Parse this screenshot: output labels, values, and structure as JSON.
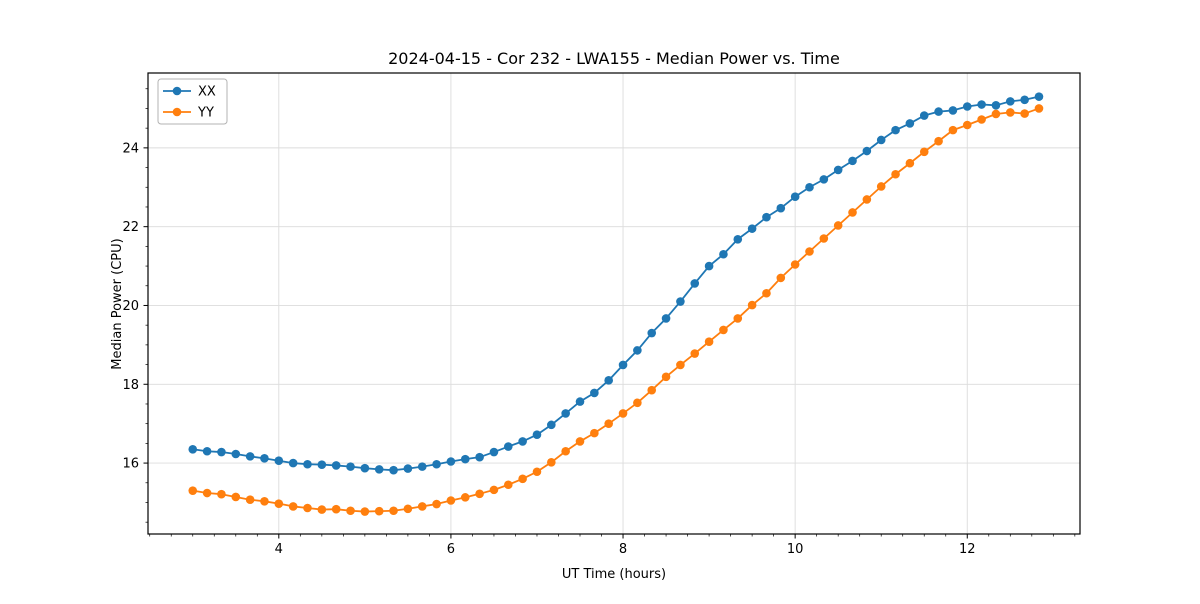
{
  "chart_data": {
    "type": "line",
    "title": "2024-04-15 - Cor 232 - LWA155 - Median Power vs. Time",
    "xlabel": "UT Time (hours)",
    "ylabel": "Median Power (CPU)",
    "xlim": [
      2.48,
      13.31
    ],
    "ylim": [
      14.2,
      25.9
    ],
    "x_ticks": [
      4,
      6,
      8,
      10,
      12
    ],
    "y_ticks": [
      16,
      18,
      20,
      22,
      24
    ],
    "x_minor_step": 0.25,
    "y_minor_step": 0.5,
    "grid": true,
    "grid_color": "#dcdcdc",
    "frame_color": "#000000",
    "legend_position": "upper left",
    "marker": "circle",
    "marker_radius": 4.3,
    "line_width": 1.8,
    "x": [
      3,
      3.1667,
      3.3333,
      3.5,
      3.6667,
      3.8333,
      4,
      4.1667,
      4.3333,
      4.5,
      4.6667,
      4.8333,
      5,
      5.1667,
      5.3333,
      5.5,
      5.6667,
      5.8333,
      6,
      6.1667,
      6.3333,
      6.5,
      6.6667,
      6.8333,
      7,
      7.1667,
      7.3333,
      7.5,
      7.6667,
      7.8333,
      8,
      8.1667,
      8.3333,
      8.5,
      8.6667,
      8.8333,
      9,
      9.1667,
      9.3333,
      9.5,
      9.6667,
      9.8333,
      10,
      10.1667,
      10.3333,
      10.5,
      10.6667,
      10.8333,
      11,
      11.1667,
      11.3333,
      11.5,
      11.6667,
      11.8333,
      12,
      12.1667,
      12.3333,
      12.5,
      12.6667,
      12.8333
    ],
    "series": [
      {
        "name": "XX",
        "color": "#1f77b4",
        "values": [
          16.35,
          16.3,
          16.28,
          16.23,
          16.17,
          16.12,
          16.06,
          16.0,
          15.97,
          15.96,
          15.94,
          15.91,
          15.87,
          15.84,
          15.82,
          15.86,
          15.91,
          15.97,
          16.04,
          16.1,
          16.15,
          16.28,
          16.42,
          16.55,
          16.72,
          16.97,
          17.26,
          17.56,
          17.78,
          18.1,
          18.49,
          18.86,
          19.3,
          19.67,
          20.1,
          20.56,
          21.0,
          21.3,
          21.68,
          21.95,
          22.24,
          22.47,
          22.76,
          23.0,
          23.2,
          23.44,
          23.67,
          23.92,
          24.2,
          24.45,
          24.62,
          24.82,
          24.92,
          24.95,
          25.05,
          25.1,
          25.08,
          25.18,
          25.22,
          25.3
        ]
      },
      {
        "name": "YY",
        "color": "#ff7f0e",
        "values": [
          15.3,
          15.24,
          15.21,
          15.14,
          15.07,
          15.03,
          14.97,
          14.9,
          14.86,
          14.82,
          14.83,
          14.79,
          14.77,
          14.78,
          14.79,
          14.84,
          14.9,
          14.96,
          15.05,
          15.13,
          15.22,
          15.32,
          15.45,
          15.6,
          15.78,
          16.02,
          16.3,
          16.55,
          16.76,
          17.0,
          17.26,
          17.53,
          17.85,
          18.19,
          18.49,
          18.78,
          19.08,
          19.38,
          19.67,
          20.01,
          20.31,
          20.7,
          21.04,
          21.37,
          21.7,
          22.03,
          22.36,
          22.69,
          23.02,
          23.33,
          23.61,
          23.9,
          24.17,
          24.45,
          24.58,
          24.72,
          24.86,
          24.9,
          24.87,
          25.0
        ]
      }
    ]
  },
  "legend": {
    "items": [
      {
        "label": "XX"
      },
      {
        "label": "YY"
      }
    ]
  }
}
